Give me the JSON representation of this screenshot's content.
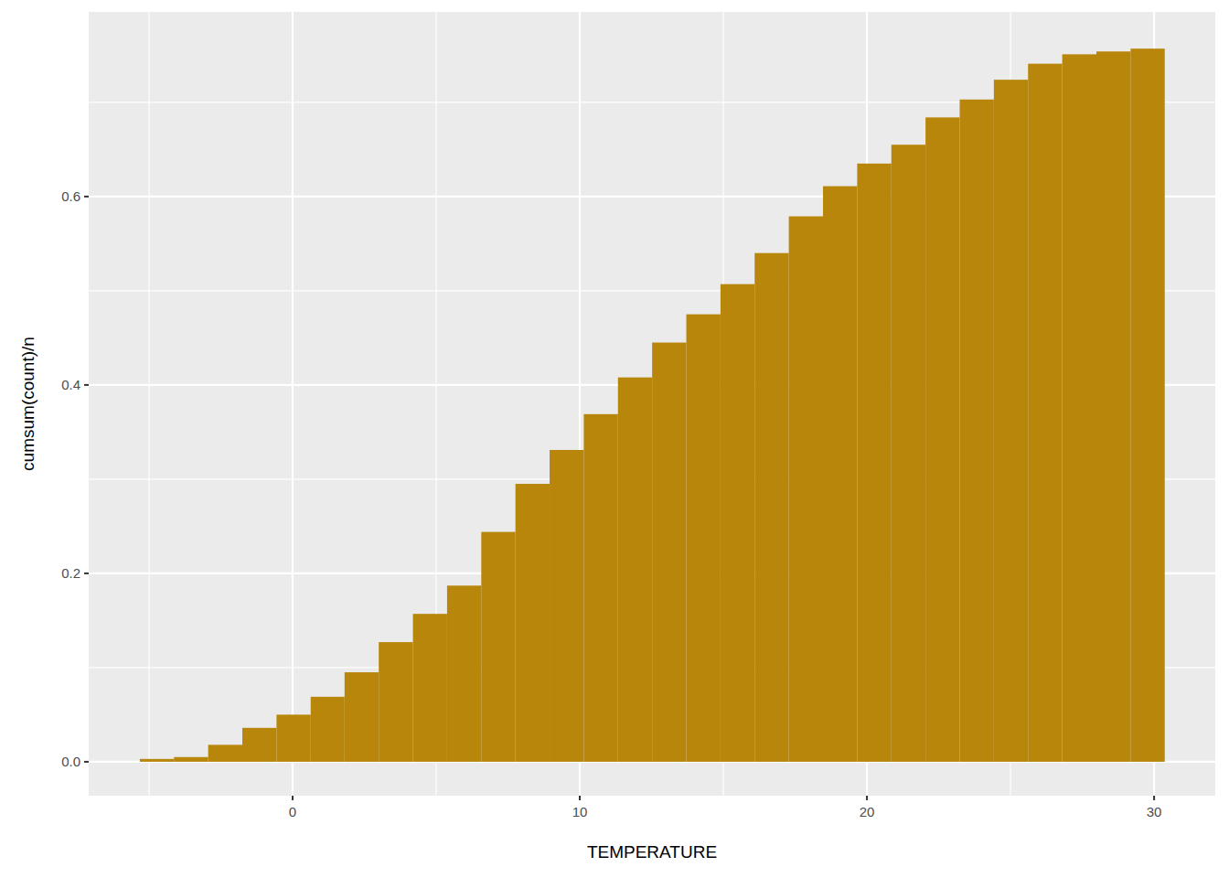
{
  "chart_data": {
    "type": "histogram",
    "x_label": "TEMPERATURE",
    "y_label": "cumsum(count)/n",
    "bins": [
      -5.32,
      -4.13,
      -2.94,
      -1.75,
      -0.56,
      0.63,
      1.81,
      3.0,
      4.19,
      5.38,
      6.57,
      7.76,
      8.95,
      10.14,
      11.33,
      12.52,
      13.71,
      14.9,
      16.09,
      17.28,
      18.47,
      19.66,
      20.85,
      22.04,
      23.23,
      24.42,
      25.61,
      26.8,
      27.99,
      29.18,
      30.37
    ],
    "values": [
      0.003,
      0.005,
      0.018,
      0.036,
      0.05,
      0.069,
      0.095,
      0.127,
      0.157,
      0.187,
      0.244,
      0.295,
      0.331,
      0.369,
      0.408,
      0.445,
      0.475,
      0.507,
      0.54,
      0.579,
      0.611,
      0.635,
      0.655,
      0.684,
      0.703,
      0.724,
      0.741,
      0.751,
      0.754,
      0.757
    ],
    "color": "#B8860B",
    "xlim": [
      -7.1,
      32.13
    ],
    "ylim": [
      -0.036,
      0.796
    ],
    "xticks": [
      0,
      10,
      20,
      30
    ],
    "yticks": [
      {
        "value": 0,
        "label": "0.0"
      },
      0.2,
      0.4,
      0.6
    ],
    "grid": true
  }
}
